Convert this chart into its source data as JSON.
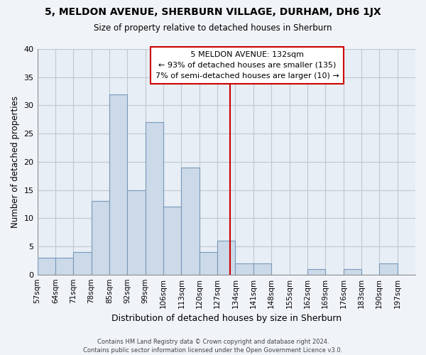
{
  "title": "5, MELDON AVENUE, SHERBURN VILLAGE, DURHAM, DH6 1JX",
  "subtitle": "Size of property relative to detached houses in Sherburn",
  "xlabel": "Distribution of detached houses by size in Sherburn",
  "ylabel": "Number of detached properties",
  "footer_lines": [
    "Contains HM Land Registry data © Crown copyright and database right 2024.",
    "Contains public sector information licensed under the Open Government Licence v3.0."
  ],
  "bin_labels": [
    "57sqm",
    "64sqm",
    "71sqm",
    "78sqm",
    "85sqm",
    "92sqm",
    "99sqm",
    "106sqm",
    "113sqm",
    "120sqm",
    "127sqm",
    "134sqm",
    "141sqm",
    "148sqm",
    "155sqm",
    "162sqm",
    "169sqm",
    "176sqm",
    "183sqm",
    "190sqm",
    "197sqm"
  ],
  "bin_edges": [
    57,
    64,
    71,
    78,
    85,
    92,
    99,
    106,
    113,
    120,
    127,
    134,
    141,
    148,
    155,
    162,
    169,
    176,
    183,
    190,
    197,
    204
  ],
  "bar_heights": [
    3,
    3,
    4,
    13,
    32,
    15,
    27,
    12,
    19,
    4,
    6,
    2,
    2,
    0,
    0,
    1,
    0,
    1,
    0,
    2,
    0
  ],
  "bar_color": "#ccd9e8",
  "bar_edgecolor": "#7799bb",
  "vline_x": 132,
  "vline_color": "#cc0000",
  "ylim": [
    0,
    40
  ],
  "yticks": [
    0,
    5,
    10,
    15,
    20,
    25,
    30,
    35,
    40
  ],
  "annotation_title": "5 MELDON AVENUE: 132sqm",
  "annotation_line1": "← 93% of detached houses are smaller (135)",
  "annotation_line2": "7% of semi-detached houses are larger (10) →",
  "background_color": "#f0f4f8",
  "plot_bg_color": "#e8eef5",
  "grid_color": "#c0c8d0"
}
